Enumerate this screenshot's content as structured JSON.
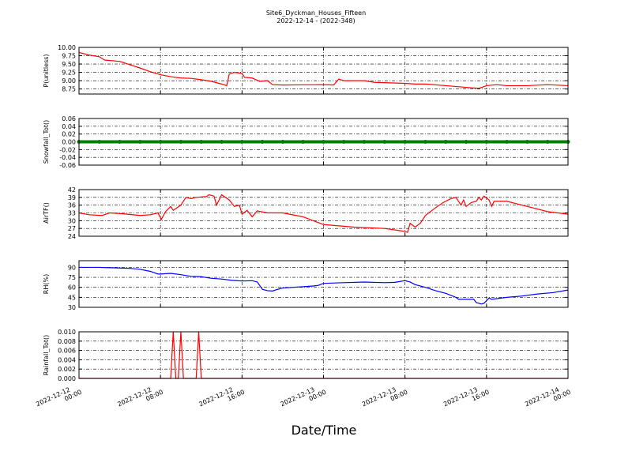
{
  "title": "Site6_Dyckman_Houses_Fifteen",
  "subtitle": "2022-12-14 - (2022-348)",
  "x_label": "Date/Time",
  "xlim": [
    "2022-12-12 00:00",
    "2022-12-14 00:00"
  ],
  "xticks": [
    {
      "value": "2022-12-12 00:00",
      "label": "2022-12-12\n00:00"
    },
    {
      "value": "2022-12-12 08:00",
      "label": "2022-12-12\n08:00"
    },
    {
      "value": "2022-12-12 16:00",
      "label": "2022-12-12\n16:00"
    },
    {
      "value": "2022-12-13 00:00",
      "label": "2022-12-13\n00:00"
    },
    {
      "value": "2022-12-13 08:00",
      "label": "2022-12-13\n08:00"
    },
    {
      "value": "2022-12-13 16:00",
      "label": "2022-12-13\n16:00"
    },
    {
      "value": "2022-12-14 00:00",
      "label": "2022-12-14\n00:00"
    }
  ],
  "grid": true,
  "chart_data": [
    {
      "type": "line",
      "y_label": "P(unitless)",
      "color": "#ff0000",
      "ylim": [
        8.6,
        10.0
      ],
      "yticks": [
        8.75,
        {
          "value": 9,
          "label": "9.00"
        },
        9.25,
        {
          "value": 9.5,
          "label": "9.50"
        },
        9.75,
        {
          "value": 10,
          "label": "10.00"
        }
      ],
      "x": [
        "2022-12-12 00:00",
        "2022-12-12 01:00",
        "2022-12-12 02:00",
        "2022-12-12 02:30",
        "2022-12-12 04:00",
        "2022-12-12 05:00",
        "2022-12-12 06:00",
        "2022-12-12 07:00",
        "2022-12-12 08:00",
        "2022-12-12 09:00",
        "2022-12-12 10:00",
        "2022-12-12 11:00",
        "2022-12-12 12:00",
        "2022-12-12 13:00",
        "2022-12-12 14:00",
        "2022-12-12 14:30",
        "2022-12-12 14:45",
        "2022-12-12 15:15",
        "2022-12-12 16:00",
        "2022-12-12 16:15",
        "2022-12-12 17:00",
        "2022-12-12 17:45",
        "2022-12-12 18:30",
        "2022-12-12 19:00",
        "2022-12-12 20:00",
        "2022-12-13 00:00",
        "2022-12-13 01:00",
        "2022-12-13 01:30",
        "2022-12-13 02:00",
        "2022-12-13 04:00",
        "2022-12-13 05:00",
        "2022-12-13 08:00",
        "2022-12-13 09:00",
        "2022-12-13 10:00",
        "2022-12-13 12:00",
        "2022-12-13 14:00",
        "2022-12-13 15:15",
        "2022-12-13 16:00",
        "2022-12-13 17:00",
        "2022-12-13 18:00",
        "2022-12-13 20:00",
        "2022-12-13 22:00",
        "2022-12-14 00:00"
      ],
      "values": [
        9.85,
        9.77,
        9.72,
        9.62,
        9.58,
        9.48,
        9.38,
        9.27,
        9.18,
        9.12,
        9.08,
        9.07,
        9.03,
        8.98,
        8.9,
        8.85,
        9.2,
        9.25,
        9.22,
        9.1,
        9.08,
        8.98,
        9.0,
        8.88,
        8.87,
        8.88,
        8.87,
        9.05,
        9.0,
        9.0,
        8.95,
        8.92,
        8.9,
        8.9,
        8.85,
        8.8,
        8.77,
        8.85,
        8.88,
        8.85,
        8.85,
        8.88,
        8.85
      ]
    },
    {
      "type": "scatter",
      "y_label": "Snowfall_Tot()",
      "color": "#008000",
      "ylim": [
        -0.06,
        0.06
      ],
      "yticks": [
        -0.06,
        -0.04,
        -0.02,
        {
          "value": 0,
          "label": "0.00"
        },
        0.02,
        0.04,
        0.06
      ],
      "x": [
        "2022-12-12 00:00",
        "2022-12-12 02:00",
        "2022-12-12 04:00",
        "2022-12-12 06:00",
        "2022-12-12 08:00",
        "2022-12-12 10:00",
        "2022-12-12 12:00",
        "2022-12-12 14:00",
        "2022-12-12 16:00",
        "2022-12-12 18:00",
        "2022-12-12 20:00",
        "2022-12-12 22:00",
        "2022-12-13 00:00",
        "2022-12-13 02:00",
        "2022-12-13 04:00",
        "2022-12-13 06:00",
        "2022-12-13 08:00",
        "2022-12-13 10:00",
        "2022-12-13 12:00",
        "2022-12-13 14:00",
        "2022-12-13 16:00",
        "2022-12-13 18:00",
        "2022-12-13 20:00",
        "2022-12-13 22:00",
        "2022-12-14 00:00"
      ],
      "values": [
        0,
        0,
        0,
        0,
        0,
        0,
        0,
        0,
        0,
        0,
        0,
        0,
        0,
        0,
        0,
        0,
        0,
        0,
        0,
        0,
        0,
        0,
        0,
        0,
        0
      ]
    },
    {
      "type": "line",
      "y_label": "AirTF()",
      "color": "#ff0000",
      "ylim": [
        24,
        42
      ],
      "yticks": [
        24,
        27,
        30,
        33,
        36,
        39,
        42
      ],
      "x": [
        "2022-12-12 00:00",
        "2022-12-12 01:00",
        "2022-12-12 02:15",
        "2022-12-12 03:00",
        "2022-12-12 04:15",
        "2022-12-12 06:00",
        "2022-12-12 07:00",
        "2022-12-12 07:45",
        "2022-12-12 08:05",
        "2022-12-12 08:30",
        "2022-12-12 09:00",
        "2022-12-12 09:15",
        "2022-12-12 10:00",
        "2022-12-12 10:30",
        "2022-12-12 11:00",
        "2022-12-12 11:30",
        "2022-12-12 12:30",
        "2022-12-12 12:45",
        "2022-12-12 13:15",
        "2022-12-12 13:30",
        "2022-12-12 14:00",
        "2022-12-12 14:45",
        "2022-12-12 15:15",
        "2022-12-12 15:45",
        "2022-12-12 16:00",
        "2022-12-12 16:30",
        "2022-12-12 17:00",
        "2022-12-12 17:30",
        "2022-12-12 18:30",
        "2022-12-12 20:00",
        "2022-12-12 22:00",
        "2022-12-13 00:00",
        "2022-12-13 03:00",
        "2022-12-13 06:00",
        "2022-12-13 07:45",
        "2022-12-13 08:15",
        "2022-12-13 08:30",
        "2022-12-13 09:00",
        "2022-12-13 09:30",
        "2022-12-13 10:00",
        "2022-12-13 11:00",
        "2022-12-13 11:45",
        "2022-12-13 12:30",
        "2022-12-13 13:00",
        "2022-12-13 13:30",
        "2022-12-13 13:45",
        "2022-12-13 14:00",
        "2022-12-13 14:30",
        "2022-12-13 15:00",
        "2022-12-13 15:15",
        "2022-12-13 15:30",
        "2022-12-13 15:45",
        "2022-12-13 16:15",
        "2022-12-13 16:30",
        "2022-12-13 16:45",
        "2022-12-13 18:00",
        "2022-12-13 19:00",
        "2022-12-13 20:30",
        "2022-12-13 22:00",
        "2022-12-14 00:00"
      ],
      "values": [
        33,
        32.3,
        32,
        33,
        32.7,
        32,
        32.3,
        33,
        30.5,
        33.5,
        35.5,
        34,
        36,
        39,
        38.5,
        39,
        39.3,
        40,
        39.5,
        36,
        40,
        38,
        35.5,
        36,
        32.5,
        34,
        31.5,
        33.8,
        33,
        33,
        31.5,
        28.5,
        27.5,
        27,
        26,
        25.5,
        29,
        27.5,
        29,
        32,
        35,
        37,
        38.5,
        39,
        36,
        38,
        35.5,
        37,
        37.5,
        39,
        38,
        39.5,
        38,
        35.5,
        37.5,
        37.5,
        36.5,
        35,
        33.5,
        32.5
      ]
    },
    {
      "type": "line",
      "y_label": "RH(%)",
      "color": "#0000ff",
      "ylim": [
        30,
        100
      ],
      "yticks": [
        30,
        45,
        60,
        75,
        90
      ],
      "x": [
        "2022-12-12 00:00",
        "2022-12-12 02:00",
        "2022-12-12 04:00",
        "2022-12-12 05:00",
        "2022-12-12 06:00",
        "2022-12-12 07:00",
        "2022-12-12 07:45",
        "2022-12-12 08:00",
        "2022-12-12 09:00",
        "2022-12-12 10:00",
        "2022-12-12 11:00",
        "2022-12-12 12:00",
        "2022-12-12 13:00",
        "2022-12-12 14:00",
        "2022-12-12 15:00",
        "2022-12-12 16:00",
        "2022-12-12 17:00",
        "2022-12-12 17:30",
        "2022-12-12 18:00",
        "2022-12-12 18:30",
        "2022-12-12 19:00",
        "2022-12-12 19:30",
        "2022-12-12 20:00",
        "2022-12-12 22:00",
        "2022-12-12 23:00",
        "2022-12-12 23:30",
        "2022-12-13 00:00",
        "2022-12-13 02:00",
        "2022-12-13 04:00",
        "2022-12-13 06:00",
        "2022-12-13 07:00",
        "2022-12-13 08:00",
        "2022-12-13 08:30",
        "2022-12-13 09:00",
        "2022-12-13 10:00",
        "2022-12-13 11:00",
        "2022-12-13 12:00",
        "2022-12-13 13:00",
        "2022-12-13 13:15",
        "2022-12-13 14:45",
        "2022-12-13 15:00",
        "2022-12-13 15:30",
        "2022-12-13 15:45",
        "2022-12-13 16:15",
        "2022-12-13 16:30",
        "2022-12-13 18:00",
        "2022-12-13 19:30",
        "2022-12-13 21:00",
        "2022-12-13 22:30",
        "2022-12-14 00:00"
      ],
      "values": [
        90,
        90,
        89,
        88.5,
        87,
        84,
        80,
        80,
        81,
        79,
        76.5,
        76,
        73.5,
        72.5,
        70.5,
        69.5,
        70,
        68,
        57,
        55,
        54.5,
        57,
        59,
        61,
        62,
        63,
        66,
        67,
        68,
        67,
        67.5,
        70,
        68,
        64,
        60,
        55,
        51,
        45,
        42,
        42,
        37,
        35,
        36,
        44,
        42,
        45,
        47,
        50,
        52,
        56
      ]
    },
    {
      "type": "line",
      "y_label": "Rainfall_Tot()",
      "color": "#ff0000",
      "ylim": [
        0,
        0.01
      ],
      "yticks": [
        {
          "value": 0,
          "label": "0.000"
        },
        0.002,
        0.004,
        0.006,
        0.008,
        {
          "value": 0.01,
          "label": "0.010"
        }
      ],
      "x": [
        "2022-12-12 00:00",
        "2022-12-12 09:00",
        "2022-12-12 09:15",
        "2022-12-12 09:30",
        "2022-12-12 09:45",
        "2022-12-12 10:00",
        "2022-12-12 10:15",
        "2022-12-12 11:30",
        "2022-12-12 11:45",
        "2022-12-12 12:00",
        "2022-12-14 00:00"
      ],
      "values": [
        0,
        0,
        0.01,
        0,
        0,
        0.01,
        0,
        0,
        0.01,
        0,
        0
      ]
    }
  ]
}
